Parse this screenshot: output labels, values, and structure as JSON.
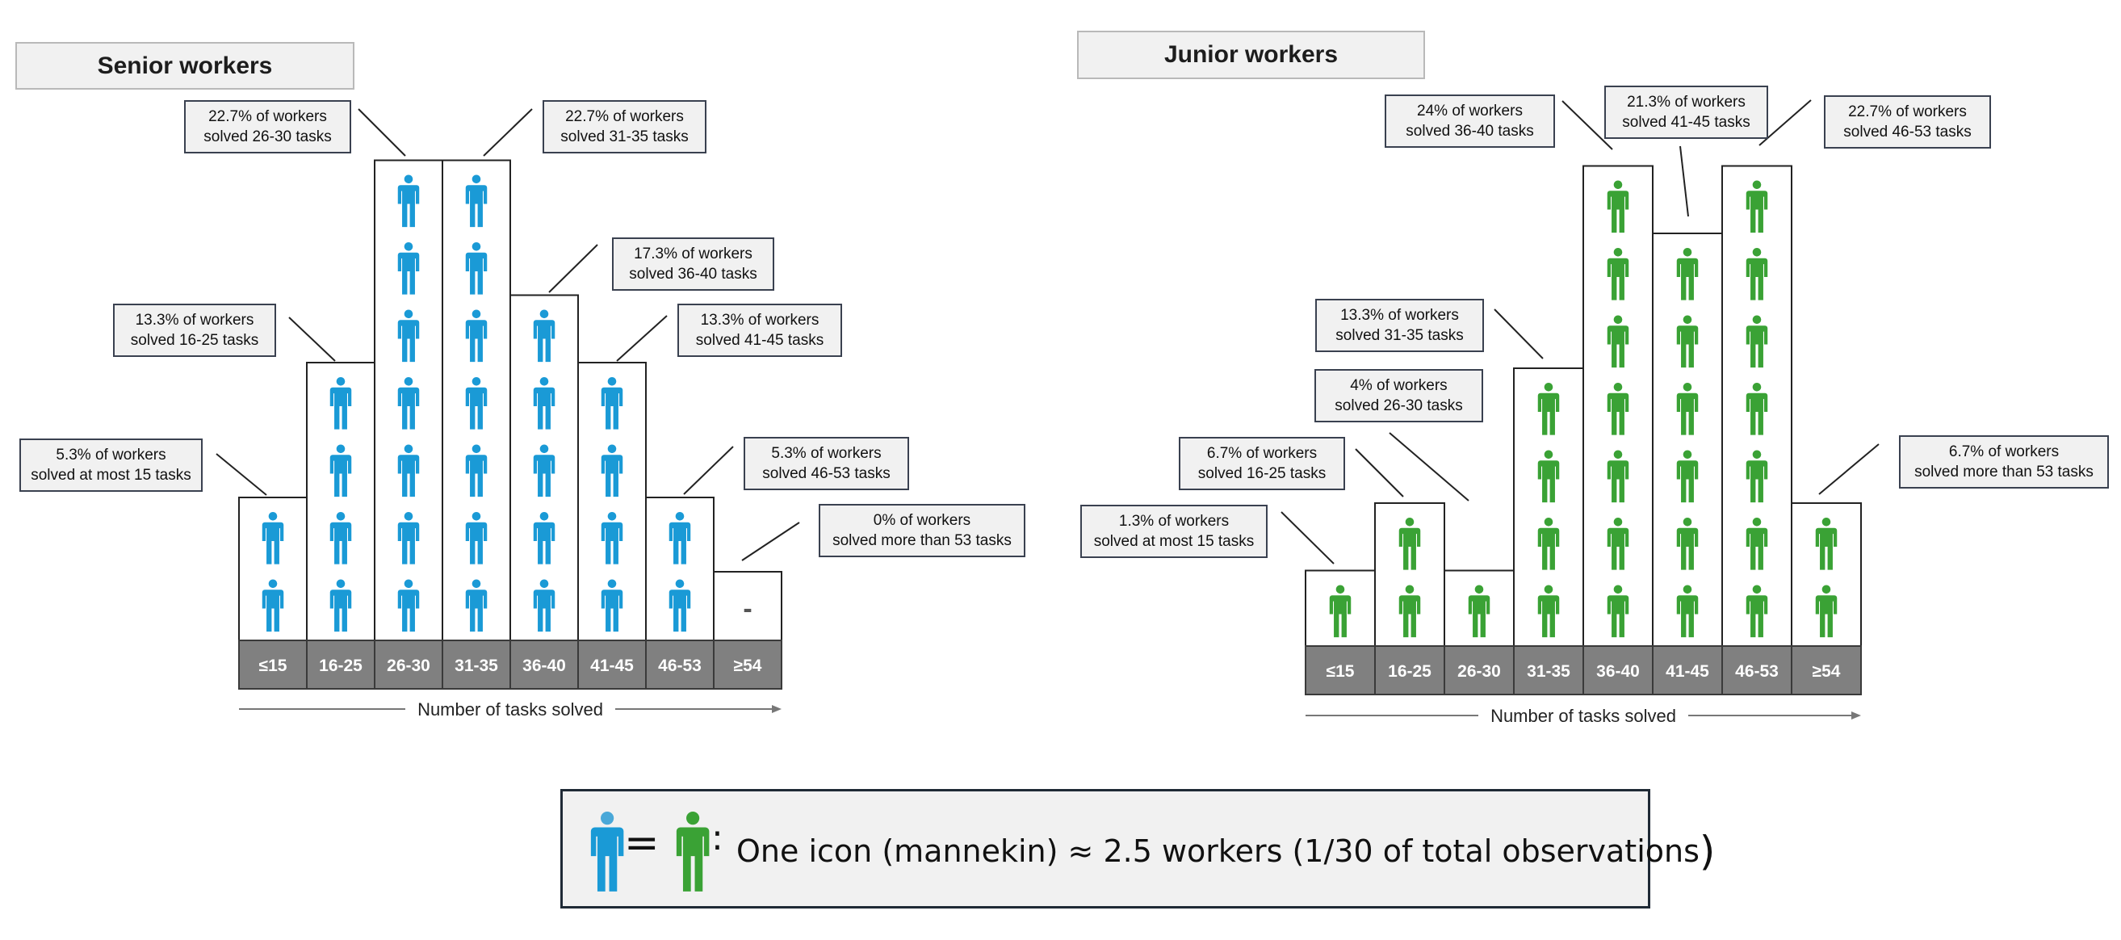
{
  "colors": {
    "senior": "#1a9ad6",
    "junior": "#3aa235",
    "bin_bg": "#808080",
    "bin_text": "#ffffff"
  },
  "legend": {
    "equals": "=",
    "colon": ":",
    "text": "One icon (mannekin) ≈ 2.5 workers (1/30 of total observations",
    "close": ")"
  },
  "chart_data": [
    {
      "type": "bar",
      "title": "Senior workers",
      "xlabel": "Number of tasks solved",
      "categories": [
        "≤15",
        "16-25",
        "26-30",
        "31-35",
        "36-40",
        "41-45",
        "46-53",
        "≥54"
      ],
      "values": [
        2,
        4,
        7,
        7,
        5,
        4,
        2,
        0
      ],
      "empty_marker": "-",
      "annotations": [
        "5.3% of workers\nsolved at most 15 tasks",
        "13.3% of workers\nsolved 16-25 tasks",
        "22.7% of workers\nsolved 26-30 tasks",
        "22.7% of workers\nsolved 31-35 tasks",
        "17.3% of workers\nsolved 36-40 tasks",
        "13.3% of workers\nsolved 41-45 tasks",
        "5.3% of workers\nsolved 46-53 tasks",
        "0% of workers\nsolved more than 53 tasks"
      ]
    },
    {
      "type": "bar",
      "title": "Junior workers",
      "xlabel": "Number of tasks solved",
      "categories": [
        "≤15",
        "16-25",
        "26-30",
        "31-35",
        "36-40",
        "41-45",
        "46-53",
        "≥54"
      ],
      "values": [
        1,
        2,
        1,
        4,
        7,
        6,
        7,
        2
      ],
      "annotations": [
        "1.3% of workers\nsolved at most 15 tasks",
        "6.7% of workers\nsolved 16-25 tasks",
        "4% of workers\nsolved 26-30 tasks",
        "13.3% of workers\nsolved 31-35 tasks",
        "24% of workers\nsolved 36-40 tasks",
        "21.3% of workers\nsolved 41-45 tasks",
        "22.7% of workers\nsolved 46-53 tasks",
        "6.7% of workers\nsolved more than 53 tasks"
      ]
    }
  ]
}
